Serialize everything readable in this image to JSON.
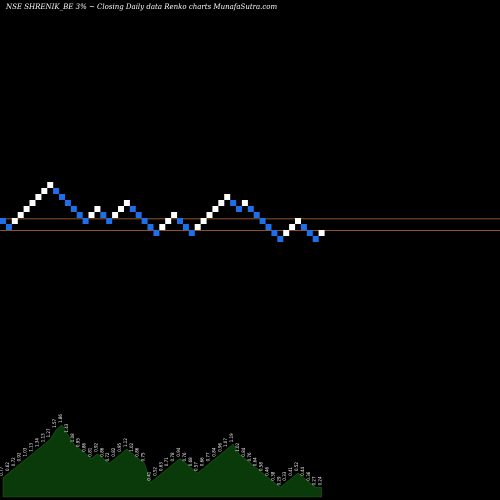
{
  "title": "NSE SHRENIK_BE 3% ~  Closing Daily data  Renko  charts MunafaSutra.com",
  "colors": {
    "background": "#000000",
    "up_brick": "#ffffff",
    "down_brick": "#1e6fe8",
    "reference_line": "#c0703a",
    "volume_area": "#0a3a0a",
    "text": "#ffffff"
  },
  "chart_data": {
    "type": "renko",
    "box_size_percent": 3,
    "bricks": [
      {
        "dir": "down",
        "level": 0
      },
      {
        "dir": "down",
        "level": -1
      },
      {
        "dir": "up",
        "level": 0
      },
      {
        "dir": "up",
        "level": 1
      },
      {
        "dir": "up",
        "level": 2
      },
      {
        "dir": "up",
        "level": 3
      },
      {
        "dir": "up",
        "level": 4
      },
      {
        "dir": "up",
        "level": 5
      },
      {
        "dir": "up",
        "level": 6
      },
      {
        "dir": "down",
        "level": 5
      },
      {
        "dir": "down",
        "level": 4
      },
      {
        "dir": "down",
        "level": 3
      },
      {
        "dir": "down",
        "level": 2
      },
      {
        "dir": "down",
        "level": 1
      },
      {
        "dir": "down",
        "level": 0
      },
      {
        "dir": "up",
        "level": 1
      },
      {
        "dir": "up",
        "level": 2
      },
      {
        "dir": "down",
        "level": 1
      },
      {
        "dir": "down",
        "level": 0
      },
      {
        "dir": "up",
        "level": 1
      },
      {
        "dir": "up",
        "level": 2
      },
      {
        "dir": "up",
        "level": 3
      },
      {
        "dir": "down",
        "level": 2
      },
      {
        "dir": "down",
        "level": 1
      },
      {
        "dir": "down",
        "level": 0
      },
      {
        "dir": "down",
        "level": -1
      },
      {
        "dir": "down",
        "level": -2
      },
      {
        "dir": "up",
        "level": -1
      },
      {
        "dir": "up",
        "level": 0
      },
      {
        "dir": "up",
        "level": 1
      },
      {
        "dir": "down",
        "level": 0
      },
      {
        "dir": "down",
        "level": -1
      },
      {
        "dir": "down",
        "level": -2
      },
      {
        "dir": "up",
        "level": -1
      },
      {
        "dir": "up",
        "level": 0
      },
      {
        "dir": "up",
        "level": 1
      },
      {
        "dir": "up",
        "level": 2
      },
      {
        "dir": "up",
        "level": 3
      },
      {
        "dir": "up",
        "level": 4
      },
      {
        "dir": "down",
        "level": 3
      },
      {
        "dir": "down",
        "level": 2
      },
      {
        "dir": "up",
        "level": 3
      },
      {
        "dir": "down",
        "level": 2
      },
      {
        "dir": "down",
        "level": 1
      },
      {
        "dir": "down",
        "level": 0
      },
      {
        "dir": "down",
        "level": -1
      },
      {
        "dir": "down",
        "level": -2
      },
      {
        "dir": "down",
        "level": -3
      },
      {
        "dir": "up",
        "level": -2
      },
      {
        "dir": "up",
        "level": -1
      },
      {
        "dir": "up",
        "level": 0
      },
      {
        "dir": "down",
        "level": -1
      },
      {
        "dir": "down",
        "level": -2
      },
      {
        "dir": "down",
        "level": -3
      },
      {
        "dir": "up",
        "level": -2
      }
    ],
    "reference_lines": [
      {
        "name": "upper",
        "level": 0.35
      },
      {
        "name": "lower",
        "level": -1.6
      }
    ],
    "volume": [
      4,
      5,
      6,
      7,
      8,
      9,
      10,
      11,
      12,
      14,
      15,
      13,
      11,
      10,
      9,
      8,
      9,
      8,
      7,
      8,
      9,
      10,
      9,
      8,
      7,
      3,
      4,
      5,
      6,
      7,
      8,
      7,
      6,
      5,
      6,
      7,
      8,
      9,
      10,
      11,
      9,
      8,
      7,
      6,
      5,
      4,
      3,
      2,
      3,
      4,
      5,
      4,
      3,
      2,
      2
    ],
    "volume_labels": [
      "0.77",
      "0.62",
      "0.72",
      "0.92",
      "1.03",
      "1.13",
      "1.34",
      "1.13",
      "1.27",
      "1.57",
      "1.86",
      "1.43",
      "1.08",
      "0.95",
      "0.86",
      "0.81",
      "0.92",
      "0.86",
      "0.72",
      "0.82",
      "0.95",
      "1.12",
      "1.02",
      "0.86",
      "0.75",
      "0.41",
      "0.52",
      "0.63",
      "0.71",
      "0.78",
      "0.94",
      "0.76",
      "0.68",
      "0.57",
      "0.66",
      "0.77",
      "0.84",
      "0.96",
      "1.07",
      "1.19",
      "1.02",
      "0.84",
      "0.76",
      "0.64",
      "0.58",
      "0.46",
      "0.38",
      "0.29",
      "0.33",
      "0.41",
      "0.52",
      "0.44",
      "0.36",
      "0.27",
      "0.24"
    ]
  }
}
